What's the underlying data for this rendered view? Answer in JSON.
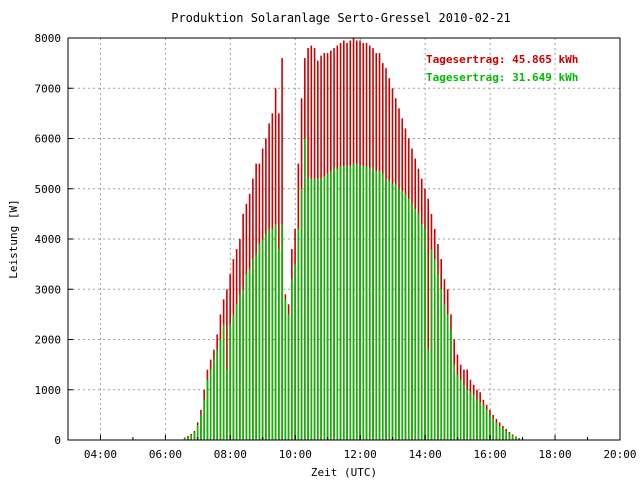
{
  "chart_data": {
    "type": "bar",
    "title": "Produktion Solaranlage Serto-Gressel 2010-02-21",
    "xlabel": "Zeit (UTC)",
    "ylabel": "Leistung [W]",
    "xlim": [
      3.0,
      20.0
    ],
    "ylim": [
      0,
      8000
    ],
    "xticks": [
      4,
      6,
      8,
      10,
      12,
      14,
      16,
      18,
      20
    ],
    "xtick_labels": [
      "04:00",
      "06:00",
      "08:00",
      "10:00",
      "12:00",
      "14:00",
      "16:00",
      "18:00",
      "20:00"
    ],
    "yticks": [
      0,
      1000,
      2000,
      3000,
      4000,
      5000,
      6000,
      7000,
      8000
    ],
    "ytick_labels": [
      "0",
      "1000",
      "2000",
      "3000",
      "4000",
      "5000",
      "6000",
      "7000",
      "8000"
    ],
    "grid": true,
    "legend_position": "top-right",
    "series": [
      {
        "name": "Tagesertrag: 45.865 kWh",
        "color": "#cc0000",
        "time": [
          6.6,
          6.7,
          6.8,
          6.9,
          7.0,
          7.1,
          7.2,
          7.3,
          7.4,
          7.5,
          7.6,
          7.7,
          7.8,
          7.9,
          8.0,
          8.1,
          8.2,
          8.3,
          8.4,
          8.5,
          8.6,
          8.7,
          8.8,
          8.9,
          9.0,
          9.1,
          9.2,
          9.3,
          9.4,
          9.5,
          9.6,
          9.7,
          9.8,
          9.9,
          10.0,
          10.1,
          10.2,
          10.3,
          10.4,
          10.5,
          10.6,
          10.7,
          10.8,
          10.9,
          11.0,
          11.1,
          11.2,
          11.3,
          11.4,
          11.5,
          11.6,
          11.7,
          11.8,
          11.9,
          12.0,
          12.1,
          12.2,
          12.3,
          12.4,
          12.5,
          12.6,
          12.7,
          12.8,
          12.9,
          13.0,
          13.1,
          13.2,
          13.3,
          13.4,
          13.5,
          13.6,
          13.7,
          13.8,
          13.9,
          14.0,
          14.1,
          14.2,
          14.3,
          14.4,
          14.5,
          14.6,
          14.7,
          14.8,
          14.9,
          15.0,
          15.1,
          15.2,
          15.3,
          15.4,
          15.5,
          15.6,
          15.7,
          15.8,
          15.9,
          16.0,
          16.1,
          16.2,
          16.3,
          16.4,
          16.5,
          16.6,
          16.7,
          16.8,
          16.9
        ],
        "values": [
          50,
          80,
          120,
          180,
          350,
          600,
          1000,
          1400,
          1600,
          1800,
          2100,
          2500,
          2800,
          3000,
          3300,
          3600,
          3800,
          4000,
          4500,
          4700,
          4900,
          5200,
          5500,
          5500,
          5800,
          6000,
          6300,
          6500,
          7000,
          6500,
          7600,
          2900,
          2700,
          3800,
          4200,
          5500,
          6800,
          7600,
          7800,
          7850,
          7800,
          7550,
          7650,
          7700,
          7700,
          7750,
          7800,
          7850,
          7900,
          7950,
          7900,
          7950,
          8000,
          7950,
          7950,
          7900,
          7900,
          7850,
          7800,
          7700,
          7700,
          7500,
          7400,
          7200,
          7000,
          6800,
          6600,
          6400,
          6200,
          6000,
          5800,
          5600,
          5400,
          5200,
          5000,
          4800,
          4500,
          4200,
          3900,
          3600,
          3200,
          3000,
          2500,
          2000,
          1700,
          1500,
          1400,
          1400,
          1200,
          1100,
          1000,
          950,
          800,
          700,
          600,
          500,
          420,
          350,
          280,
          220,
          160,
          110,
          70,
          40
        ]
      },
      {
        "name": "Tagesertrag: 31.649 kWh",
        "color": "#00bb00",
        "time": [
          6.6,
          6.7,
          6.8,
          6.9,
          7.0,
          7.1,
          7.2,
          7.3,
          7.4,
          7.5,
          7.6,
          7.7,
          7.8,
          7.9,
          8.0,
          8.1,
          8.2,
          8.3,
          8.4,
          8.5,
          8.6,
          8.7,
          8.8,
          8.9,
          9.0,
          9.1,
          9.2,
          9.3,
          9.4,
          9.5,
          9.6,
          9.7,
          9.8,
          9.9,
          10.0,
          10.1,
          10.2,
          10.3,
          10.4,
          10.5,
          10.6,
          10.7,
          10.8,
          10.9,
          11.0,
          11.1,
          11.2,
          11.3,
          11.4,
          11.5,
          11.6,
          11.7,
          11.8,
          11.9,
          12.0,
          12.1,
          12.2,
          12.3,
          12.4,
          12.5,
          12.6,
          12.7,
          12.8,
          12.9,
          13.0,
          13.1,
          13.2,
          13.3,
          13.4,
          13.5,
          13.6,
          13.7,
          13.8,
          13.9,
          14.0,
          14.1,
          14.2,
          14.3,
          14.4,
          14.5,
          14.6,
          14.7,
          14.8,
          14.9,
          15.0,
          15.1,
          15.2,
          15.3,
          15.4,
          15.5,
          15.6,
          15.7,
          15.8,
          15.9,
          16.0,
          16.1,
          16.2,
          16.3,
          16.4,
          16.5,
          16.6,
          16.7,
          16.8,
          16.9
        ],
        "values": [
          40,
          60,
          100,
          150,
          300,
          500,
          800,
          1200,
          1400,
          1600,
          1800,
          2000,
          2300,
          1400,
          2300,
          2500,
          2700,
          2900,
          3000,
          3300,
          3400,
          3600,
          3700,
          3900,
          4000,
          4100,
          4200,
          4200,
          4300,
          3800,
          4300,
          2800,
          2500,
          3200,
          3500,
          4200,
          5000,
          6000,
          5200,
          5200,
          5200,
          5200,
          5200,
          5250,
          5300,
          5350,
          5400,
          5400,
          5450,
          5450,
          5450,
          5450,
          5500,
          5500,
          5450,
          5450,
          5450,
          5400,
          5400,
          5350,
          5350,
          5300,
          5200,
          5150,
          5100,
          5100,
          5000,
          4950,
          4900,
          4800,
          4700,
          4600,
          4500,
          4300,
          4200,
          1800,
          3800,
          3600,
          3300,
          3000,
          2700,
          2500,
          2200,
          1500,
          1300,
          1200,
          1100,
          1000,
          950,
          900,
          800,
          750,
          700,
          600,
          500,
          420,
          350,
          280,
          230,
          180,
          130,
          90,
          60,
          30
        ]
      }
    ]
  }
}
